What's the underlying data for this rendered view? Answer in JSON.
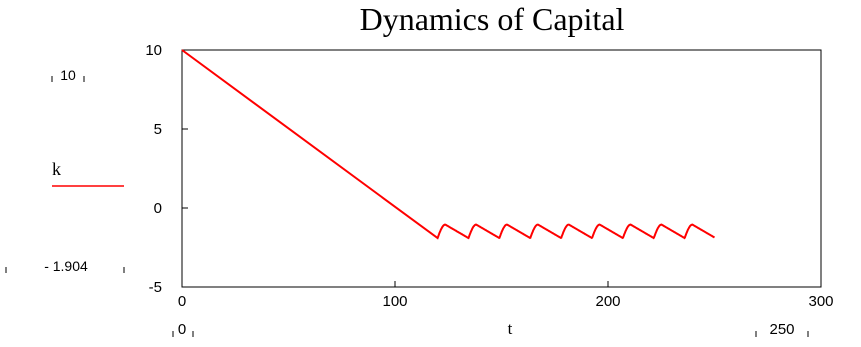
{
  "chart_data": {
    "type": "line",
    "title": "Dynamics of Capital",
    "xlabel": "t",
    "ylabel": "",
    "xlim": [
      0,
      300
    ],
    "ylim": [
      -5,
      10
    ],
    "x_ticks": [
      "0",
      "100",
      "200",
      "300"
    ],
    "y_ticks": [
      "-5",
      "0",
      "5",
      "10"
    ],
    "x_range_markers": {
      "min": "0",
      "max": "250"
    },
    "y_range_markers": {
      "max": "10",
      "min": "- 1.904"
    },
    "grid": false,
    "legend_position": "left",
    "series": [
      {
        "name": "k",
        "color": "#ff0000",
        "decline": {
          "t_start": 0,
          "k_start": 10,
          "t_end": 120,
          "k_end": -1.904
        },
        "oscillation": {
          "t_start": 120,
          "t_end": 250,
          "period": 14.5,
          "low": -1.904,
          "high": -1.05
        }
      }
    ]
  }
}
